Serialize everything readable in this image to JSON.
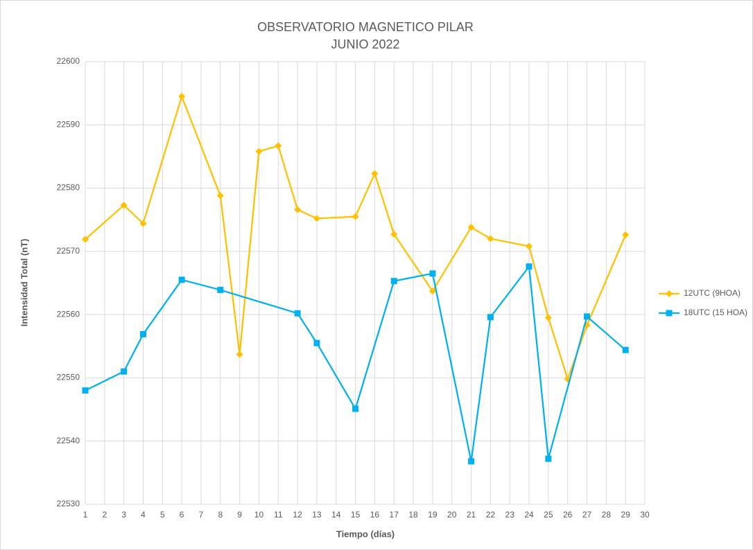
{
  "chart_data": {
    "type": "line",
    "title": "OBSERVATORIO MAGNETICO PILAR",
    "subtitle": "JUNIO 2022",
    "x_label": "Tiempo (días)",
    "y_label": "Intensidad Total (nT)",
    "xlim": [
      1,
      30
    ],
    "xticks": [
      1,
      2,
      3,
      4,
      5,
      6,
      7,
      8,
      9,
      10,
      11,
      12,
      13,
      14,
      15,
      16,
      17,
      18,
      19,
      20,
      21,
      22,
      23,
      24,
      25,
      26,
      27,
      28,
      29,
      30
    ],
    "ylim": [
      22530,
      22600
    ],
    "yticks": [
      22530,
      22540,
      22550,
      22560,
      22570,
      22580,
      22590,
      22600
    ],
    "grid": true,
    "legend": "right",
    "series": [
      {
        "name": "12UTC (9HOA)",
        "color": "#ffc000",
        "marker": "diamond",
        "x": [
          1,
          3,
          4,
          6,
          8,
          9,
          10,
          11,
          12,
          13,
          15,
          16,
          17,
          19,
          21,
          22,
          24,
          25,
          26,
          27,
          29
        ],
        "values": [
          22571.9,
          22577.3,
          22574.4,
          22594.5,
          22578.8,
          22553.7,
          22585.8,
          22586.7,
          22576.6,
          22575.2,
          22575.5,
          22582.3,
          22572.7,
          22563.7,
          22573.8,
          22572.0,
          22570.8,
          22559.5,
          22549.8,
          22558.3,
          22572.6
        ]
      },
      {
        "name": "18UTC (15 HOA)",
        "color": "#00b0f0",
        "marker": "square",
        "x": [
          1,
          3,
          4,
          6,
          8,
          12,
          13,
          15,
          17,
          19,
          21,
          22,
          24,
          25,
          27,
          29
        ],
        "values": [
          22548.0,
          22551.0,
          22556.9,
          22565.5,
          22563.9,
          22560.2,
          22555.5,
          22545.1,
          22565.3,
          22566.5,
          22536.8,
          22559.6,
          22567.6,
          22537.2,
          22559.7,
          22554.4
        ]
      }
    ]
  }
}
